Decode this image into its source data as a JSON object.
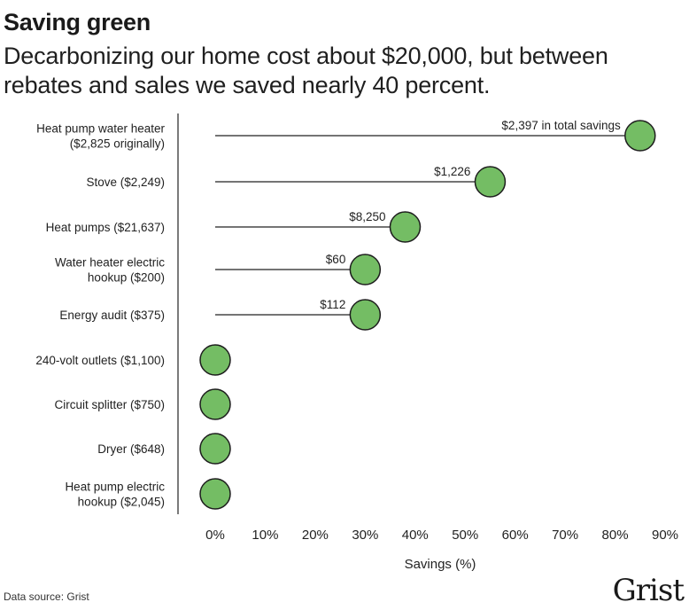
{
  "header": {
    "title": "Saving green",
    "subtitle": "Decarbonizing our home cost about $20,000, but between rebates and sales we saved nearly 40 percent."
  },
  "chart_data": {
    "type": "scatter",
    "categories": [
      [
        "Heat pump water heater",
        "($2,825 originally)"
      ],
      [
        "Stove ($2,249)"
      ],
      [
        "Heat pumps ($21,637)"
      ],
      [
        "Water heater electric",
        "hookup ($200)"
      ],
      [
        "Energy audit ($375)"
      ],
      [
        "240-volt outlets ($1,100)"
      ],
      [
        "Circuit splitter ($750)"
      ],
      [
        "Dryer ($648)"
      ],
      [
        "Heat pump electric",
        "hookup ($2,045)"
      ]
    ],
    "values": [
      85,
      55,
      38,
      30,
      30,
      0,
      0,
      0,
      0
    ],
    "data_labels": [
      "$2,397 in total savings",
      "$1,226",
      "$8,250",
      "$60",
      "$112",
      "",
      "",
      "",
      ""
    ],
    "xticks": [
      0,
      10,
      20,
      30,
      40,
      50,
      60,
      70,
      80,
      90
    ],
    "tick_labels": [
      "0%",
      "10%",
      "20%",
      "30%",
      "40%",
      "50%",
      "60%",
      "70%",
      "80%",
      "90%"
    ],
    "xlabel": "Savings (%)",
    "xlim": [
      0,
      90
    ],
    "grid": false,
    "colors": {
      "dot": "#74bd64",
      "dot_stroke": "#1e1e1e",
      "line": "#222222",
      "axis": "#333333"
    }
  },
  "footer": {
    "source": "Data source: Grist",
    "logo": "Grist"
  }
}
